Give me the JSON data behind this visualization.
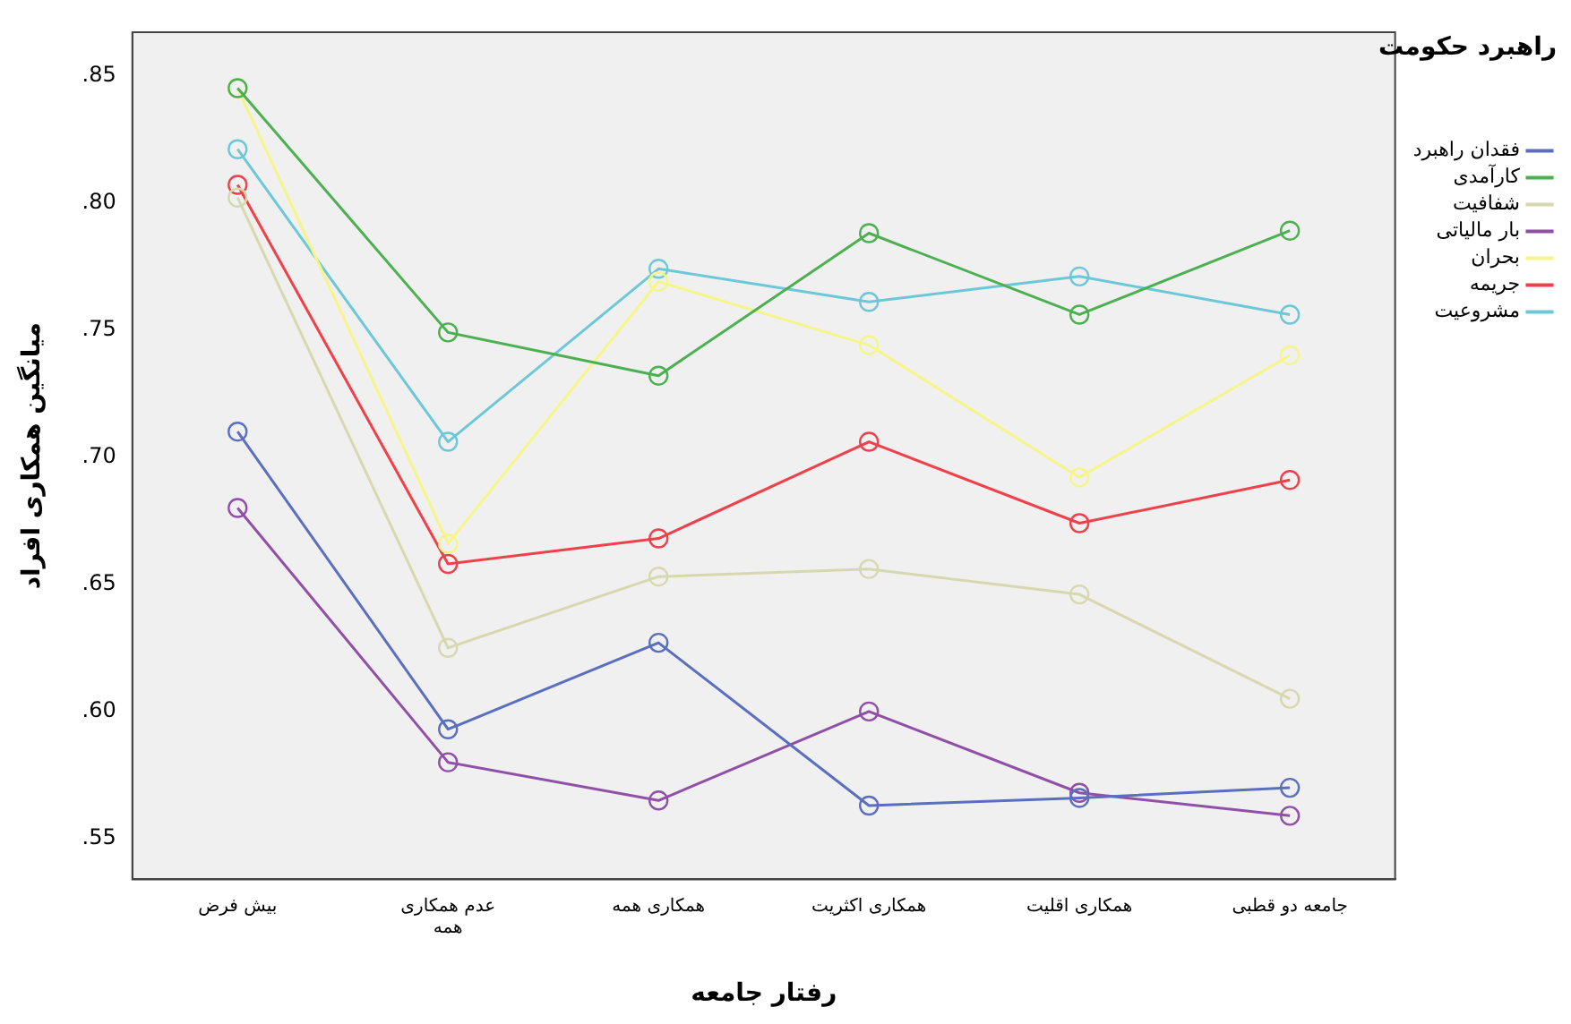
{
  "chart_data": {
    "type": "line",
    "xlabel": "رفتار جامعه",
    "ylabel": "میانگین همکاری افراد",
    "legend_title": "راهبرد حکومت",
    "categories": [
      "بیش فرض",
      "عدم همکاری همه",
      "همکاری همه",
      "همکاری اکثریت",
      "همکاری اقلیت",
      "جامعه دو قطبی"
    ],
    "series": [
      {
        "name": "فقدان راهبرد",
        "color": "#5a6fc0",
        "values": [
          0.71,
          0.593,
          0.627,
          0.563,
          0.566,
          0.57
        ]
      },
      {
        "name": "کارآمدی",
        "color": "#4cb050",
        "values": [
          0.845,
          0.749,
          0.732,
          0.788,
          0.756,
          0.789
        ]
      },
      {
        "name": "شفافیت",
        "color": "#d8d8b0",
        "values": [
          0.802,
          0.625,
          0.653,
          0.656,
          0.646,
          0.605
        ]
      },
      {
        "name": "بار مالیاتی",
        "color": "#9050a8",
        "values": [
          0.68,
          0.58,
          0.565,
          0.6,
          0.568,
          0.559
        ]
      },
      {
        "name": "بحران",
        "color": "#f5f58a",
        "values": [
          0.845,
          0.666,
          0.769,
          0.744,
          0.692,
          0.74
        ]
      },
      {
        "name": "جریمه",
        "color": "#f0404a",
        "values": [
          0.807,
          0.658,
          0.668,
          0.706,
          0.674,
          0.691
        ]
      },
      {
        "name": "مشروعیت",
        "color": "#6cc8d8",
        "values": [
          0.821,
          0.706,
          0.774,
          0.761,
          0.771,
          0.756
        ]
      }
    ],
    "ylim": [
      0.534,
      0.867
    ],
    "yticks": [
      {
        "value": 0.55,
        "label": ".55"
      },
      {
        "value": 0.6,
        "label": ".60"
      },
      {
        "value": 0.65,
        "label": ".65"
      },
      {
        "value": 0.7,
        "label": ".70"
      },
      {
        "value": 0.75,
        "label": ".75"
      },
      {
        "value": 0.8,
        "label": ".80"
      },
      {
        "value": 0.85,
        "label": ".85"
      }
    ],
    "grid": false,
    "legend": "right",
    "marker": "circle",
    "line_style": "solid"
  }
}
